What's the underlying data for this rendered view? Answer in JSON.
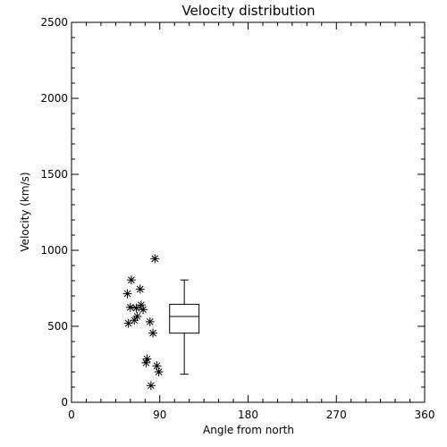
{
  "chart_data": {
    "type": "scatter",
    "title": "Velocity distribution",
    "xlabel": "Angle from north",
    "ylabel": "Velocity (km/s)",
    "xlim": [
      0,
      360
    ],
    "ylim": [
      0,
      2500
    ],
    "xticks": [
      0,
      90,
      180,
      270,
      360
    ],
    "yticks": [
      0,
      500,
      1000,
      1500,
      2000,
      2500
    ],
    "grid": false,
    "marker": "asterisk",
    "points": [
      {
        "x": 57,
        "y": 715
      },
      {
        "x": 61,
        "y": 805
      },
      {
        "x": 58,
        "y": 520
      },
      {
        "x": 60,
        "y": 625
      },
      {
        "x": 64,
        "y": 540
      },
      {
        "x": 66,
        "y": 620
      },
      {
        "x": 67,
        "y": 565
      },
      {
        "x": 70,
        "y": 745
      },
      {
        "x": 71,
        "y": 640
      },
      {
        "x": 73,
        "y": 610
      },
      {
        "x": 76,
        "y": 260
      },
      {
        "x": 77,
        "y": 285
      },
      {
        "x": 80,
        "y": 530
      },
      {
        "x": 81,
        "y": 110
      },
      {
        "x": 83,
        "y": 455
      },
      {
        "x": 85,
        "y": 945
      },
      {
        "x": 87,
        "y": 240
      },
      {
        "x": 89,
        "y": 200
      }
    ],
    "boxplot": {
      "x_center": 115,
      "half_width_x": 15,
      "whisker_low": 185,
      "q1": 455,
      "median": 565,
      "q3": 645,
      "whisker_high": 805
    }
  }
}
